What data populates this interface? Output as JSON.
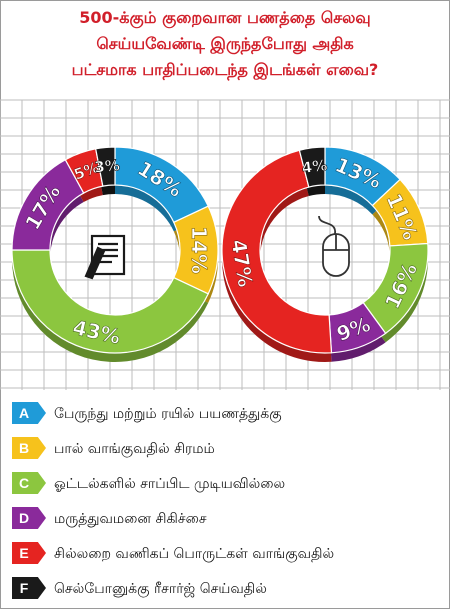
{
  "title_lines": [
    "500-க்கும் குறைவான பணத்தை செலவு",
    "செய்யவேண்டி இருந்தபோது அதிக",
    "பட்சமாக பாதிப்படைந்த இடங்கள் எவை?"
  ],
  "colors": {
    "A": "#1f9bd8",
    "B": "#f6c21c",
    "C": "#8cc63f",
    "D": "#8a2a9b",
    "E": "#e52421",
    "F": "#1a1a1a",
    "title": "#d11f2a",
    "grid": "#bdbdbd"
  },
  "legend": [
    {
      "letter": "A",
      "text": "பேருந்து மற்றும் ரயில் பயணத்துக்கு"
    },
    {
      "letter": "B",
      "text": "பால் வாங்குவதில் சிரமம்"
    },
    {
      "letter": "C",
      "text": "ஓட்டல்களில் சாப்பிட முடியவில்லை"
    },
    {
      "letter": "D",
      "text": "மருத்துவமனை சிகிச்சை"
    },
    {
      "letter": "E",
      "text": "சில்லறை வணிகப் பொருட்கள் வாங்குவதில்"
    },
    {
      "letter": "F",
      "text": "செல்போனுக்கு ரீசார்ஜ் செய்வதில்"
    }
  ],
  "chart_data": [
    {
      "type": "pie",
      "icon": "document-pen-icon",
      "slices": [
        {
          "category": "A",
          "value": 18,
          "label": "18%"
        },
        {
          "category": "B",
          "value": 14,
          "label": "14%"
        },
        {
          "category": "C",
          "value": 43,
          "label": "43%"
        },
        {
          "category": "D",
          "value": 17,
          "label": "17%"
        },
        {
          "category": "E",
          "value": 5,
          "label": "5%"
        },
        {
          "category": "F",
          "value": 3,
          "label": "3%"
        }
      ]
    },
    {
      "type": "pie",
      "icon": "computer-mouse-icon",
      "slices": [
        {
          "category": "A",
          "value": 13,
          "label": "13%"
        },
        {
          "category": "B",
          "value": 11,
          "label": "11%"
        },
        {
          "category": "C",
          "value": 16,
          "label": "16%"
        },
        {
          "category": "D",
          "value": 9,
          "label": "9%"
        },
        {
          "category": "E",
          "value": 47,
          "label": "47%"
        },
        {
          "category": "F",
          "value": 4,
          "label": "4%"
        }
      ]
    }
  ]
}
